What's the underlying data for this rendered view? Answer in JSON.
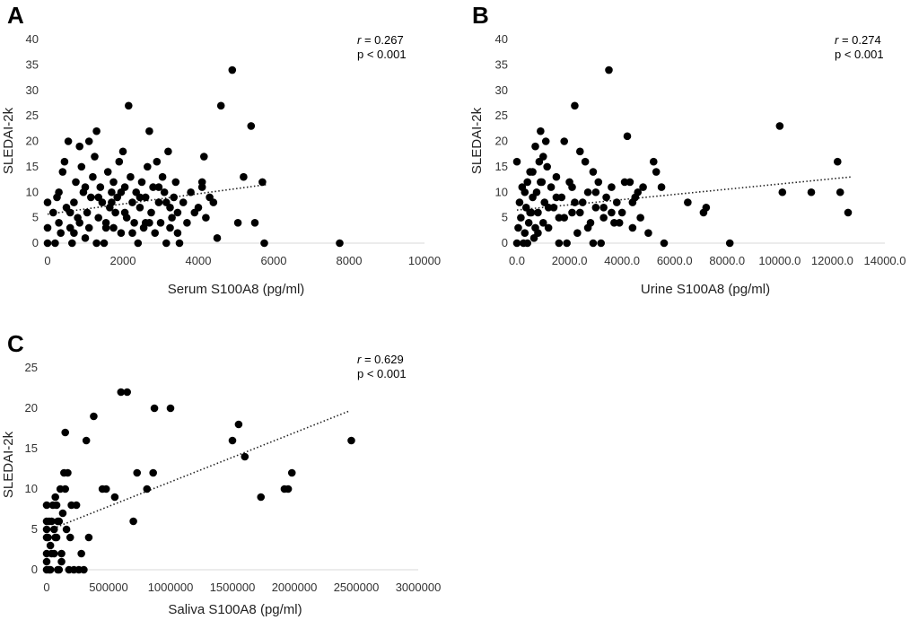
{
  "chart_data": [
    {
      "panel": "A",
      "type": "scatter",
      "xlabel": "Serum S100A8 (pg/ml)",
      "ylabel": "SLEDAI-2k",
      "xlim": [
        0,
        10000
      ],
      "ylim": [
        0,
        40
      ],
      "x_ticks": [
        0,
        2000,
        4000,
        6000,
        8000,
        10000
      ],
      "x_tick_labels": [
        "0",
        "2000",
        "4000",
        "6000",
        "8000",
        "10000"
      ],
      "y_ticks": [
        0,
        5,
        10,
        15,
        20,
        25,
        30,
        35,
        40
      ],
      "y_tick_labels": [
        "0",
        "5",
        "10",
        "15",
        "20",
        "25",
        "30",
        "35",
        "40"
      ],
      "stat_r_label": "r",
      "stat_r_value": " = 0.267",
      "stat_p": "p < 0.001",
      "trendline": {
        "x": [
          0,
          5800
        ],
        "y": [
          5.7,
          11.5
        ]
      },
      "points": [
        [
          0,
          0
        ],
        [
          0,
          3
        ],
        [
          0,
          8
        ],
        [
          150,
          6
        ],
        [
          200,
          0
        ],
        [
          250,
          9
        ],
        [
          300,
          4
        ],
        [
          350,
          2
        ],
        [
          400,
          14
        ],
        [
          450,
          16
        ],
        [
          300,
          10
        ],
        [
          500,
          7
        ],
        [
          550,
          20
        ],
        [
          600,
          3
        ],
        [
          650,
          0
        ],
        [
          700,
          8
        ],
        [
          750,
          12
        ],
        [
          800,
          5
        ],
        [
          850,
          19
        ],
        [
          900,
          15
        ],
        [
          950,
          10
        ],
        [
          1000,
          1
        ],
        [
          1050,
          6
        ],
        [
          1100,
          20
        ],
        [
          1150,
          9
        ],
        [
          1200,
          13
        ],
        [
          1250,
          17
        ],
        [
          1300,
          22
        ],
        [
          1350,
          5
        ],
        [
          1400,
          11
        ],
        [
          1450,
          8
        ],
        [
          1500,
          0
        ],
        [
          1550,
          3
        ],
        [
          1600,
          14
        ],
        [
          1650,
          7
        ],
        [
          1700,
          10
        ],
        [
          1750,
          12
        ],
        [
          1800,
          6
        ],
        [
          1850,
          9
        ],
        [
          1900,
          16
        ],
        [
          1950,
          2
        ],
        [
          2000,
          18
        ],
        [
          2050,
          11
        ],
        [
          2100,
          5
        ],
        [
          2150,
          27
        ],
        [
          2200,
          13
        ],
        [
          2250,
          8
        ],
        [
          2300,
          4
        ],
        [
          2350,
          10
        ],
        [
          2400,
          0
        ],
        [
          2450,
          7
        ],
        [
          2500,
          12
        ],
        [
          2550,
          3
        ],
        [
          2600,
          9
        ],
        [
          2650,
          15
        ],
        [
          2700,
          22
        ],
        [
          2750,
          6
        ],
        [
          2800,
          11
        ],
        [
          2850,
          2
        ],
        [
          2900,
          16
        ],
        [
          2950,
          8
        ],
        [
          3000,
          4
        ],
        [
          3050,
          13
        ],
        [
          3100,
          10
        ],
        [
          3150,
          0
        ],
        [
          3200,
          18
        ],
        [
          3250,
          7
        ],
        [
          3300,
          5
        ],
        [
          3350,
          9
        ],
        [
          3400,
          12
        ],
        [
          3450,
          2
        ],
        [
          3500,
          0
        ],
        [
          3600,
          8
        ],
        [
          3700,
          4
        ],
        [
          3800,
          10
        ],
        [
          3900,
          6
        ],
        [
          4000,
          7
        ],
        [
          4100,
          12
        ],
        [
          4150,
          17
        ],
        [
          4200,
          5
        ],
        [
          4300,
          9
        ],
        [
          4400,
          8
        ],
        [
          4500,
          1
        ],
        [
          4600,
          27
        ],
        [
          4900,
          34
        ],
        [
          5050,
          4
        ],
        [
          5200,
          13
        ],
        [
          5400,
          23
        ],
        [
          5500,
          4
        ],
        [
          5700,
          12
        ],
        [
          5750,
          0
        ],
        [
          7750,
          0
        ],
        [
          600,
          6
        ],
        [
          850,
          4
        ],
        [
          1100,
          3
        ],
        [
          1350,
          9
        ],
        [
          1550,
          4
        ],
        [
          1750,
          3
        ],
        [
          1950,
          10
        ],
        [
          2250,
          2
        ],
        [
          2450,
          9
        ],
        [
          2700,
          4
        ],
        [
          2950,
          11
        ],
        [
          3250,
          3
        ],
        [
          3450,
          6
        ],
        [
          4100,
          11
        ],
        [
          1300,
          0
        ],
        [
          1700,
          8
        ],
        [
          2050,
          6
        ],
        [
          2600,
          4
        ],
        [
          3150,
          8
        ],
        [
          700,
          2
        ],
        [
          1000,
          11
        ]
      ]
    },
    {
      "panel": "B",
      "type": "scatter",
      "xlabel": "Urine S100A8 (pg/ml)",
      "ylabel": "SLEDAI-2k",
      "xlim": [
        0,
        14000
      ],
      "ylim": [
        0,
        40
      ],
      "x_ticks": [
        0,
        2000,
        4000,
        6000,
        8000,
        10000,
        12000,
        14000
      ],
      "x_tick_labels": [
        "0.0",
        "2000.0",
        "4000.0",
        "6000.0",
        "8000.0",
        "10000.0",
        "12000.0",
        "14000.0"
      ],
      "y_ticks": [
        0,
        5,
        10,
        15,
        20,
        25,
        30,
        35,
        40
      ],
      "y_tick_labels": [
        "0",
        "5",
        "10",
        "15",
        "20",
        "25",
        "30",
        "35",
        "40"
      ],
      "stat_r_label": "r",
      "stat_r_value": " = 0.274",
      "stat_p": "p < 0.001",
      "trendline": {
        "x": [
          0,
          12700
        ],
        "y": [
          6.5,
          13
        ]
      },
      "points": [
        [
          0,
          0
        ],
        [
          0,
          16
        ],
        [
          50,
          3
        ],
        [
          100,
          8
        ],
        [
          150,
          5
        ],
        [
          200,
          11
        ],
        [
          250,
          0
        ],
        [
          300,
          2
        ],
        [
          350,
          7
        ],
        [
          400,
          12
        ],
        [
          450,
          4
        ],
        [
          500,
          14
        ],
        [
          550,
          6
        ],
        [
          600,
          9
        ],
        [
          650,
          1
        ],
        [
          700,
          19
        ],
        [
          750,
          10
        ],
        [
          800,
          6
        ],
        [
          850,
          16
        ],
        [
          900,
          22
        ],
        [
          950,
          12
        ],
        [
          1000,
          4
        ],
        [
          1050,
          8
        ],
        [
          1100,
          20
        ],
        [
          1150,
          15
        ],
        [
          1200,
          3
        ],
        [
          1300,
          11
        ],
        [
          1400,
          7
        ],
        [
          1500,
          13
        ],
        [
          1600,
          5
        ],
        [
          1700,
          9
        ],
        [
          1800,
          20
        ],
        [
          1900,
          0
        ],
        [
          2000,
          12
        ],
        [
          2100,
          6
        ],
        [
          2200,
          27
        ],
        [
          2300,
          2
        ],
        [
          2400,
          18
        ],
        [
          2500,
          8
        ],
        [
          2600,
          16
        ],
        [
          2700,
          10
        ],
        [
          2800,
          4
        ],
        [
          2900,
          14
        ],
        [
          3000,
          7
        ],
        [
          3100,
          12
        ],
        [
          3200,
          0
        ],
        [
          3300,
          5
        ],
        [
          3400,
          9
        ],
        [
          3500,
          34
        ],
        [
          3600,
          11
        ],
        [
          3700,
          4
        ],
        [
          3800,
          8
        ],
        [
          4000,
          6
        ],
        [
          4200,
          21
        ],
        [
          4300,
          12
        ],
        [
          4400,
          3
        ],
        [
          4500,
          9
        ],
        [
          4700,
          5
        ],
        [
          4800,
          11
        ],
        [
          5000,
          2
        ],
        [
          5200,
          16
        ],
        [
          5300,
          14
        ],
        [
          5500,
          11
        ],
        [
          5600,
          0
        ],
        [
          6500,
          8
        ],
        [
          7100,
          6
        ],
        [
          7200,
          7
        ],
        [
          8100,
          0
        ],
        [
          10000,
          23
        ],
        [
          10100,
          10
        ],
        [
          11200,
          10
        ],
        [
          12200,
          16
        ],
        [
          12300,
          10
        ],
        [
          12600,
          6
        ],
        [
          300,
          10
        ],
        [
          500,
          6
        ],
        [
          700,
          3
        ],
        [
          900,
          12
        ],
        [
          1200,
          7
        ],
        [
          1500,
          9
        ],
        [
          1800,
          5
        ],
        [
          2100,
          11
        ],
        [
          2400,
          6
        ],
        [
          2700,
          3
        ],
        [
          3000,
          10
        ],
        [
          3300,
          7
        ],
        [
          3600,
          6
        ],
        [
          4100,
          12
        ],
        [
          4600,
          10
        ],
        [
          400,
          0
        ],
        [
          800,
          2
        ],
        [
          1600,
          0
        ],
        [
          2200,
          8
        ],
        [
          2900,
          0
        ],
        [
          3900,
          4
        ],
        [
          4400,
          8
        ],
        [
          1000,
          17
        ],
        [
          600,
          14
        ]
      ]
    },
    {
      "panel": "C",
      "type": "scatter",
      "xlabel": "Saliva S100A8 (pg/ml)",
      "ylabel": "SLEDAI-2k",
      "xlim": [
        0,
        3000000
      ],
      "ylim": [
        0,
        25
      ],
      "x_ticks": [
        0,
        500000,
        1000000,
        1500000,
        2000000,
        2500000,
        3000000
      ],
      "x_tick_labels": [
        "0",
        "500000",
        "1000000",
        "1500000",
        "2000000",
        "2500000",
        "3000000"
      ],
      "y_ticks": [
        0,
        5,
        10,
        15,
        20,
        25
      ],
      "y_tick_labels": [
        "0",
        "5",
        "10",
        "15",
        "20",
        "25"
      ],
      "stat_r_label": "r",
      "stat_r_value": " = 0.629",
      "stat_p": "p < 0.001",
      "trendline": {
        "x": [
          0,
          2450000
        ],
        "y": [
          4.8,
          19.7
        ]
      },
      "points": [
        [
          0,
          0
        ],
        [
          0,
          1
        ],
        [
          0,
          2
        ],
        [
          0,
          4
        ],
        [
          0,
          5
        ],
        [
          0,
          6
        ],
        [
          0,
          8
        ],
        [
          20000,
          0
        ],
        [
          30000,
          3
        ],
        [
          40000,
          6
        ],
        [
          50000,
          8
        ],
        [
          60000,
          2
        ],
        [
          70000,
          9
        ],
        [
          80000,
          4
        ],
        [
          90000,
          0
        ],
        [
          100000,
          6
        ],
        [
          110000,
          10
        ],
        [
          120000,
          2
        ],
        [
          130000,
          7
        ],
        [
          140000,
          12
        ],
        [
          150000,
          17
        ],
        [
          160000,
          5
        ],
        [
          170000,
          12
        ],
        [
          180000,
          0
        ],
        [
          190000,
          4
        ],
        [
          200000,
          8
        ],
        [
          220000,
          0
        ],
        [
          240000,
          8
        ],
        [
          260000,
          0
        ],
        [
          280000,
          2
        ],
        [
          300000,
          0
        ],
        [
          320000,
          16
        ],
        [
          340000,
          4
        ],
        [
          380000,
          19
        ],
        [
          450000,
          10
        ],
        [
          480000,
          10
        ],
        [
          550000,
          9
        ],
        [
          600000,
          22
        ],
        [
          650000,
          22
        ],
        [
          700000,
          6
        ],
        [
          730000,
          12
        ],
        [
          810000,
          10
        ],
        [
          860000,
          12
        ],
        [
          870000,
          20
        ],
        [
          1000000,
          20
        ],
        [
          1500000,
          16
        ],
        [
          1550000,
          18
        ],
        [
          1600000,
          14
        ],
        [
          1730000,
          9
        ],
        [
          1920000,
          10
        ],
        [
          1950000,
          10
        ],
        [
          1980000,
          12
        ],
        [
          2460000,
          16
        ],
        [
          10000,
          4
        ],
        [
          30000,
          0
        ],
        [
          60000,
          5
        ],
        [
          90000,
          6
        ],
        [
          120000,
          1
        ],
        [
          40000,
          2
        ],
        [
          80000,
          8
        ],
        [
          100000,
          0
        ],
        [
          150000,
          10
        ],
        [
          20000,
          6
        ],
        [
          70000,
          4
        ]
      ]
    }
  ]
}
